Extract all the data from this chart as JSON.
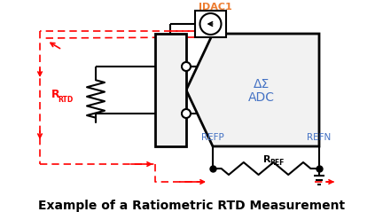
{
  "title": "Example of a Ratiometric RTD Measurement",
  "title_fontsize": 10,
  "background_color": "#ffffff",
  "line_color": "#000000",
  "dashed_color": "#ff0000",
  "adc_label_1": "ΔΣ",
  "adc_label_2": "ADC",
  "adc_label_color": "#4472c4",
  "idac_label": "IDAC1",
  "idac_label_color": "#ed7d31",
  "refp_label": "REFP",
  "refn_label": "REFN",
  "ref_label_color": "#4472c4",
  "rrtd_R": "R",
  "rrtd_sub": "RTD",
  "rrtd_color": "#ff0000",
  "rref_R": "R",
  "rref_sub": "REF",
  "rref_color": "#000000",
  "figsize": [
    4.32,
    2.39
  ],
  "dpi": 100
}
